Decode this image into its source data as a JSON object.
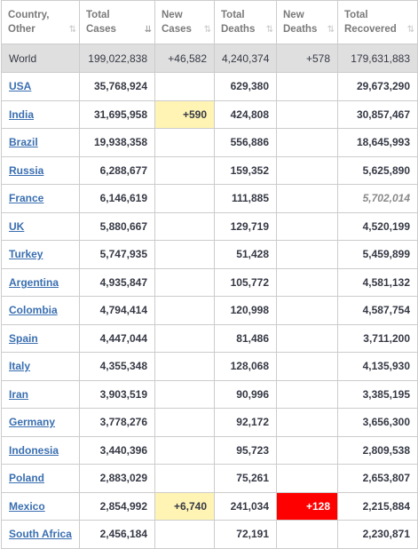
{
  "headers": {
    "country": [
      "Country,",
      "Other"
    ],
    "total_cases": [
      "Total",
      "Cases"
    ],
    "new_cases": [
      "New",
      "Cases"
    ],
    "total_deaths": [
      "Total",
      "Deaths"
    ],
    "new_deaths": [
      "New",
      "Deaths"
    ],
    "total_recovered": [
      "Total",
      "Recovered"
    ],
    "sort_icon": "⇅",
    "sort_icon_active": "⇊"
  },
  "world": {
    "country": "World",
    "total_cases": "199,022,838",
    "new_cases": "+46,582",
    "total_deaths": "4,240,374",
    "new_deaths": "+578",
    "total_recovered": "179,631,883"
  },
  "rows": [
    {
      "country": "USA",
      "total_cases": "35,768,924",
      "new_cases": "",
      "total_deaths": "629,380",
      "new_deaths": "",
      "total_recovered": "29,673,290"
    },
    {
      "country": "India",
      "total_cases": "31,695,958",
      "new_cases": "+590",
      "total_deaths": "424,808",
      "new_deaths": "",
      "total_recovered": "30,857,467"
    },
    {
      "country": "Brazil",
      "total_cases": "19,938,358",
      "new_cases": "",
      "total_deaths": "556,886",
      "new_deaths": "",
      "total_recovered": "18,645,993"
    },
    {
      "country": "Russia",
      "total_cases": "6,288,677",
      "new_cases": "",
      "total_deaths": "159,352",
      "new_deaths": "",
      "total_recovered": "5,625,890"
    },
    {
      "country": "France",
      "total_cases": "6,146,619",
      "new_cases": "",
      "total_deaths": "111,885",
      "new_deaths": "",
      "total_recovered": "5,702,014"
    },
    {
      "country": "UK",
      "total_cases": "5,880,667",
      "new_cases": "",
      "total_deaths": "129,719",
      "new_deaths": "",
      "total_recovered": "4,520,199"
    },
    {
      "country": "Turkey",
      "total_cases": "5,747,935",
      "new_cases": "",
      "total_deaths": "51,428",
      "new_deaths": "",
      "total_recovered": "5,459,899"
    },
    {
      "country": "Argentina",
      "total_cases": "4,935,847",
      "new_cases": "",
      "total_deaths": "105,772",
      "new_deaths": "",
      "total_recovered": "4,581,132"
    },
    {
      "country": "Colombia",
      "total_cases": "4,794,414",
      "new_cases": "",
      "total_deaths": "120,998",
      "new_deaths": "",
      "total_recovered": "4,587,754"
    },
    {
      "country": "Spain",
      "total_cases": "4,447,044",
      "new_cases": "",
      "total_deaths": "81,486",
      "new_deaths": "",
      "total_recovered": "3,711,200"
    },
    {
      "country": "Italy",
      "total_cases": "4,355,348",
      "new_cases": "",
      "total_deaths": "128,068",
      "new_deaths": "",
      "total_recovered": "4,135,930"
    },
    {
      "country": "Iran",
      "total_cases": "3,903,519",
      "new_cases": "",
      "total_deaths": "90,996",
      "new_deaths": "",
      "total_recovered": "3,385,195"
    },
    {
      "country": "Germany",
      "total_cases": "3,778,276",
      "new_cases": "",
      "total_deaths": "92,172",
      "new_deaths": "",
      "total_recovered": "3,656,300"
    },
    {
      "country": "Indonesia",
      "total_cases": "3,440,396",
      "new_cases": "",
      "total_deaths": "95,723",
      "new_deaths": "",
      "total_recovered": "2,809,538"
    },
    {
      "country": "Poland",
      "total_cases": "2,883,029",
      "new_cases": "",
      "total_deaths": "75,261",
      "new_deaths": "",
      "total_recovered": "2,653,807"
    },
    {
      "country": "Mexico",
      "total_cases": "2,854,992",
      "new_cases": "+6,740",
      "total_deaths": "241,034",
      "new_deaths": "+128",
      "total_recovered": "2,215,884"
    },
    {
      "country": "South Africa",
      "total_cases": "2,456,184",
      "new_cases": "",
      "total_deaths": "72,191",
      "new_deaths": "",
      "total_recovered": "2,230,871"
    }
  ],
  "colors": {
    "new_cases_highlight": "#fff4b3",
    "new_deaths_highlight": "#ff0000",
    "world_row_bg": "#dfdfdf",
    "link": "#3a6fb0"
  }
}
